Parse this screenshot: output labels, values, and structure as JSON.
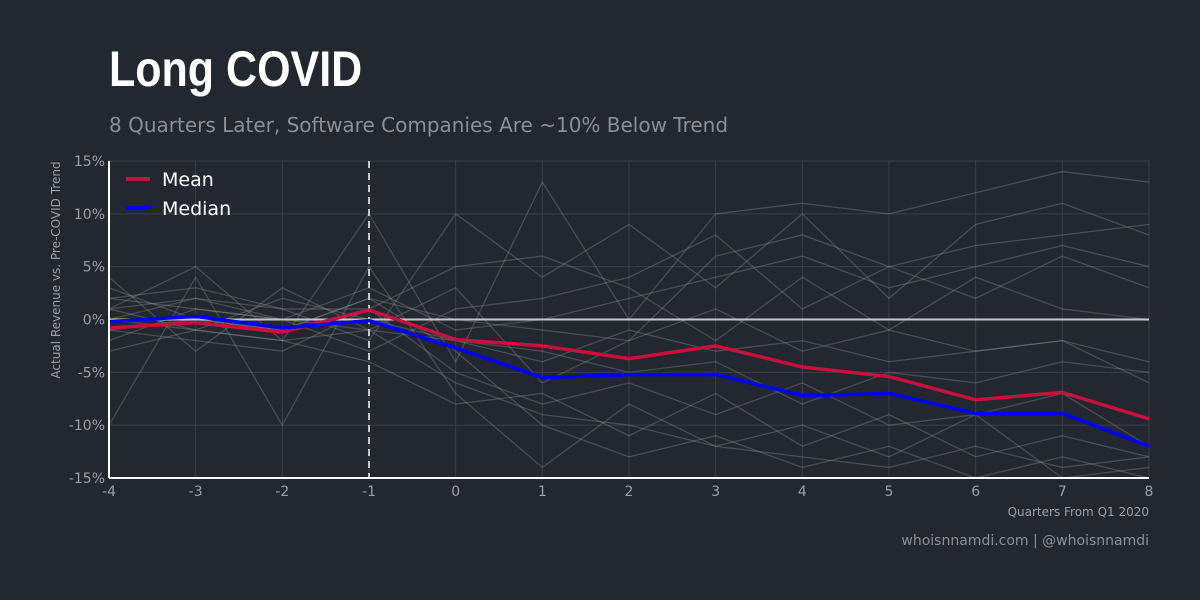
{
  "header": {
    "title": "Long COVID",
    "subtitle": "8 Quarters Later, Software Companies Are ~10% Below Trend"
  },
  "footer": {
    "credit": "whoisnnamdi.com | @whoisnnamdi"
  },
  "chart_data": {
    "type": "line",
    "title": "Long COVID",
    "subtitle": "8 Quarters Later, Software Companies Are ~10% Below Trend",
    "xlabel": "Quarters From Q1 2020",
    "ylabel": "Actual Revenue vs. Pre-COVID Trend",
    "x": [
      -4,
      -3,
      -2,
      -1,
      0,
      1,
      2,
      3,
      4,
      5,
      6,
      7,
      8
    ],
    "xlim": [
      -4,
      8
    ],
    "ylim": [
      -15,
      15
    ],
    "x_ticks": [
      "-4",
      "-3",
      "-2",
      "-1",
      "0",
      "1",
      "2",
      "3",
      "4",
      "5",
      "6",
      "7",
      "8"
    ],
    "y_ticks": [
      15,
      10,
      5,
      0,
      -5,
      -10,
      -15
    ],
    "y_tick_labels": [
      "15%",
      "10%",
      "5%",
      "0%",
      "-5%",
      "-10%",
      "-15%"
    ],
    "grid": true,
    "reference_lines": {
      "horizontal_y": 0,
      "vertical_x_dashed": -1
    },
    "legend_position": "top-left",
    "series": [
      {
        "name": "Mean",
        "color": "#c8103c",
        "values": [
          -0.8,
          -0.3,
          -1.2,
          0.9,
          -1.9,
          -2.5,
          -3.7,
          -2.5,
          -4.5,
          -5.4,
          -7.6,
          -6.9,
          -9.4
        ]
      },
      {
        "name": "Median",
        "color": "#0000ff",
        "values": [
          -0.2,
          0.3,
          -0.8,
          -0.1,
          -2.7,
          -5.5,
          -5.2,
          -5.2,
          -7.2,
          -7.0,
          -8.9,
          -8.9,
          -12.0
        ]
      }
    ],
    "company_series_color": "#9a9ea6",
    "company_series": [
      [
        1,
        5,
        -2,
        10,
        -4,
        13,
        0,
        10,
        11,
        10,
        12,
        14,
        13
      ],
      [
        2,
        1,
        0,
        -1,
        3,
        -6,
        -2,
        6,
        8,
        5,
        7,
        8,
        9
      ],
      [
        -1,
        -2,
        -3,
        1,
        -5,
        -8,
        -6,
        -9,
        -6,
        -10,
        -9,
        -7,
        -12
      ],
      [
        0,
        2,
        1,
        -2,
        10,
        4,
        9,
        3,
        10,
        2,
        9,
        11,
        8
      ],
      [
        3,
        0,
        -1,
        2,
        -3,
        -10,
        -13,
        -11,
        -14,
        -12,
        -15,
        -13,
        -15
      ],
      [
        -2,
        1,
        0,
        -3,
        1,
        2,
        4,
        8,
        1,
        5,
        2,
        6,
        3
      ],
      [
        1,
        -1,
        2,
        0,
        -2,
        -4,
        -1,
        -3,
        -2,
        -4,
        -3,
        -2,
        -6
      ],
      [
        -10,
        4,
        -10,
        5,
        -7,
        -14,
        -8,
        -12,
        -10,
        -13,
        -9,
        -15,
        -14
      ],
      [
        2,
        3,
        1,
        1,
        5,
        6,
        3,
        -2,
        4,
        -1,
        4,
        1,
        0
      ],
      [
        0,
        -1,
        -2,
        -4,
        -8,
        -7,
        -11,
        -7,
        -12,
        -9,
        -13,
        -11,
        -13
      ],
      [
        4,
        -3,
        3,
        -1,
        -2,
        -3,
        -5,
        -4,
        -8,
        -5,
        -6,
        -4,
        -5
      ],
      [
        -1,
        0,
        -1,
        2,
        0,
        -1,
        -2,
        1,
        -3,
        -1,
        -3,
        -2,
        -4
      ],
      [
        1,
        2,
        0,
        3,
        -1,
        0,
        2,
        4,
        6,
        3,
        5,
        7,
        5
      ],
      [
        -3,
        -1,
        -2,
        -1,
        -6,
        -9,
        -10,
        -12,
        -13,
        -14,
        -12,
        -14,
        -13
      ]
    ]
  }
}
